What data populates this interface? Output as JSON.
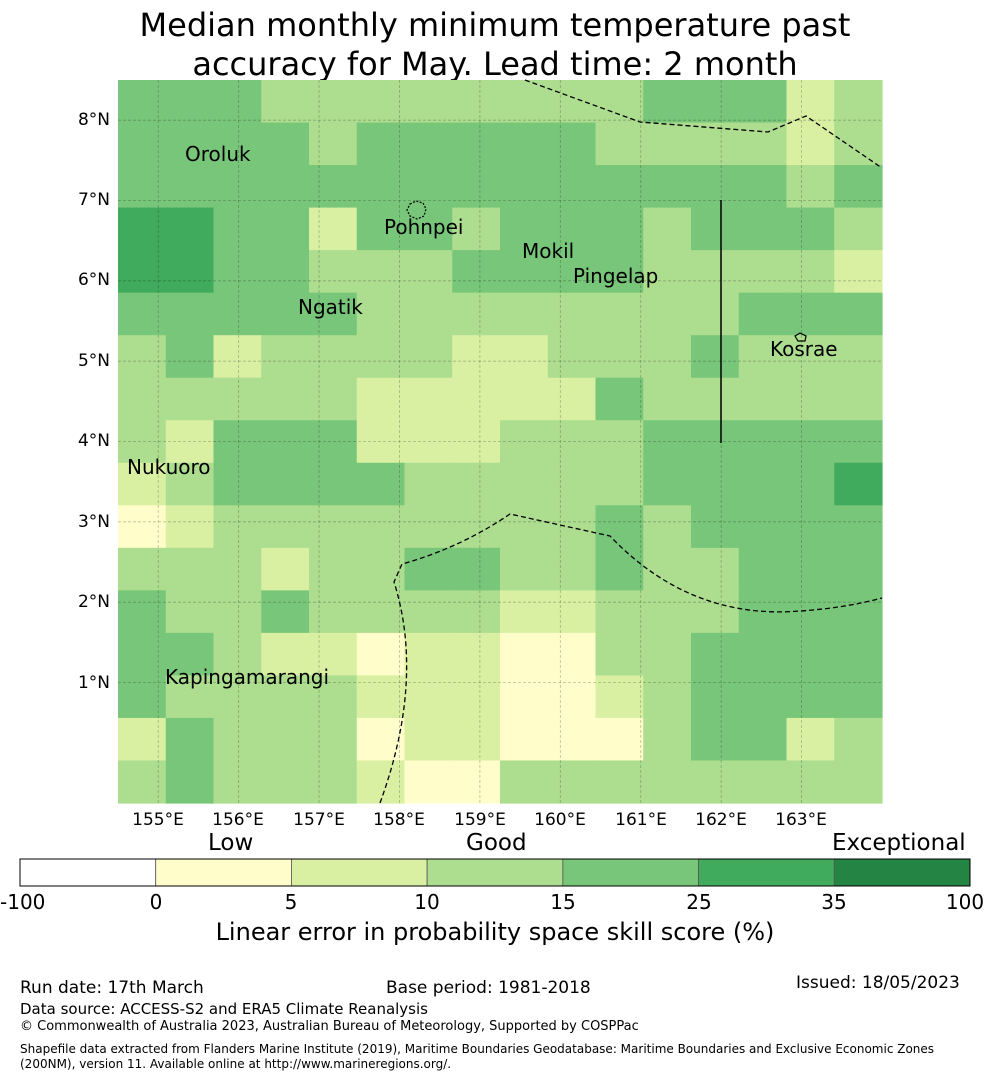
{
  "title": {
    "line1": "Median monthly minimum temperature past",
    "line2": "accuracy for May. Lead time: 2 month"
  },
  "map": {
    "lat_ticks": [
      "8°N",
      "7°N",
      "6°N",
      "5°N",
      "4°N",
      "3°N",
      "2°N",
      "1°N"
    ],
    "lon_ticks": [
      "155°E",
      "156°E",
      "157°E",
      "158°E",
      "159°E",
      "160°E",
      "161°E",
      "162°E",
      "163°E"
    ],
    "extent": {
      "lon_min": 154.5,
      "lon_max": 164.0,
      "lat_min": -0.5,
      "lat_max": 8.5
    },
    "skill_grid": [
      [
        4,
        4,
        4,
        3,
        3,
        3,
        3,
        3,
        3,
        3,
        3,
        4,
        4,
        4,
        2,
        3
      ],
      [
        4,
        4,
        4,
        4,
        3,
        4,
        4,
        4,
        4,
        4,
        3,
        3,
        3,
        3,
        2,
        3
      ],
      [
        4,
        4,
        4,
        4,
        4,
        4,
        4,
        4,
        4,
        4,
        4,
        4,
        4,
        4,
        3,
        4
      ],
      [
        5,
        5,
        4,
        4,
        2,
        4,
        4,
        3,
        4,
        4,
        4,
        3,
        4,
        4,
        4,
        3
      ],
      [
        5,
        5,
        4,
        4,
        3,
        3,
        3,
        4,
        4,
        4,
        4,
        3,
        3,
        3,
        3,
        2
      ],
      [
        4,
        4,
        4,
        4,
        4,
        3,
        3,
        3,
        3,
        3,
        3,
        3,
        3,
        4,
        4,
        4
      ],
      [
        3,
        4,
        2,
        3,
        3,
        3,
        3,
        2,
        2,
        3,
        3,
        3,
        4,
        3,
        3,
        3
      ],
      [
        3,
        3,
        3,
        3,
        3,
        2,
        2,
        2,
        2,
        2,
        4,
        3,
        3,
        3,
        3,
        3
      ],
      [
        3,
        2,
        4,
        4,
        4,
        2,
        2,
        2,
        3,
        3,
        3,
        4,
        4,
        4,
        4,
        4
      ],
      [
        2,
        3,
        4,
        4,
        4,
        4,
        3,
        3,
        3,
        3,
        3,
        4,
        4,
        4,
        4,
        5
      ],
      [
        1,
        2,
        3,
        3,
        3,
        3,
        3,
        3,
        3,
        3,
        4,
        3,
        4,
        4,
        4,
        4
      ],
      [
        3,
        3,
        3,
        2,
        3,
        3,
        4,
        4,
        3,
        3,
        4,
        3,
        3,
        4,
        4,
        4
      ],
      [
        4,
        3,
        3,
        4,
        3,
        3,
        3,
        3,
        2,
        2,
        3,
        3,
        3,
        4,
        4,
        4
      ],
      [
        4,
        4,
        3,
        2,
        2,
        1,
        2,
        2,
        1,
        1,
        3,
        3,
        4,
        4,
        4,
        4
      ],
      [
        4,
        3,
        3,
        3,
        3,
        2,
        2,
        2,
        1,
        1,
        2,
        3,
        4,
        4,
        4,
        4
      ],
      [
        2,
        4,
        3,
        3,
        3,
        1,
        2,
        2,
        1,
        1,
        1,
        3,
        4,
        4,
        2,
        3
      ],
      [
        3,
        4,
        3,
        3,
        3,
        2,
        1,
        1,
        3,
        3,
        3,
        3,
        3,
        3,
        3,
        3
      ]
    ],
    "places": [
      {
        "name": "Oroluk",
        "lon": 155.33,
        "lat": 7.6
      },
      {
        "name": "Pohnpei",
        "lon": 158.22,
        "lat": 6.87
      },
      {
        "name": "Mokil",
        "lon": 159.77,
        "lat": 6.68
      },
      {
        "name": "Pingelap",
        "lon": 160.7,
        "lat": 6.22
      },
      {
        "name": "Ngatik",
        "lon": 157.15,
        "lat": 5.8
      },
      {
        "name": "Kosrae",
        "lon": 162.98,
        "lat": 5.32
      },
      {
        "name": "Nukuoro",
        "lon": 154.98,
        "lat": 3.85
      },
      {
        "name": "Kapingamarangi",
        "lon": 154.78,
        "lat": 1.07
      }
    ]
  },
  "colorbar": {
    "categories": [
      "Low",
      "Good",
      "Exceptional"
    ],
    "ticks": [
      "-100",
      "0",
      "5",
      "10",
      "15",
      "25",
      "35",
      "100"
    ],
    "colors": [
      "#ffffff",
      "#fffdc9",
      "#d9f0a3",
      "#addd8e",
      "#78c679",
      "#41ab5d",
      "#238443"
    ],
    "label": "Linear error in probability space skill score (%)"
  },
  "footer": {
    "run_date": "Run date: 17th March",
    "base_period": "Base period: 1981-2018",
    "issued": "Issued: 18/05/2023",
    "data_source": "Data source: ACCESS-S2 and ERA5 Climate Reanalysis",
    "copyright": "© Commonwealth of Australia 2023, Australian Bureau of Meteorology, Supported by COSPPac",
    "shapefile": "Shapefile data extracted from Flanders Marine Institute (2019), Maritime Boundaries Geodatabase: Maritime Boundaries and Exclusive Economic Zones (200NM), version 11. Available online at http://www.marineregions.org/."
  }
}
